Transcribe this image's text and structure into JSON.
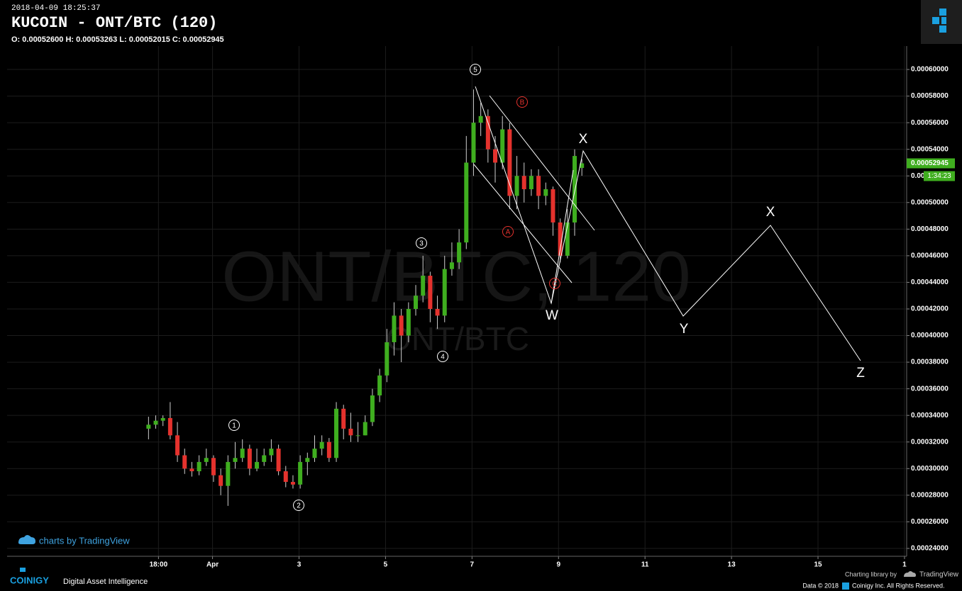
{
  "header": {
    "timestamp": "2018-04-09 18:25:37",
    "title": "KUCOIN - ONT/BTC (120)",
    "ohlc": "O: 0.00052600 H: 0.00053263 L: 0.00052015 C: 0.00052945"
  },
  "chart_data": {
    "type": "candlestick",
    "watermark": "ONT/BTC, 120",
    "watermark_sub": "ONT/BTC",
    "up_color": "#3fae1f",
    "down_color": "#e5322d",
    "x": [
      -1.48,
      -1.313,
      -1.146,
      -0.979,
      -0.812,
      -0.645,
      -0.478,
      -0.311,
      -0.144,
      0.023,
      0.19,
      0.357,
      0.524,
      0.691,
      0.858,
      1.025,
      1.192,
      1.359,
      1.526,
      1.693,
      1.86,
      2.027,
      2.194,
      2.361,
      2.528,
      2.695,
      2.862,
      3.029,
      3.196,
      3.363,
      3.53,
      3.697,
      3.864,
      4.031,
      4.198,
      4.365,
      4.532,
      4.699,
      4.866,
      5.033,
      5.2,
      5.367,
      5.534,
      5.701,
      5.868,
      6.035,
      6.202,
      6.369,
      6.536,
      6.703,
      6.87,
      7.037,
      7.204,
      7.371,
      7.538,
      7.705,
      7.872,
      8.039,
      8.206,
      8.373,
      8.54
    ],
    "open": [
      0.00033,
      0.000333,
      0.000336,
      0.000338,
      0.000325,
      0.00031,
      0.0003,
      0.000298,
      0.000305,
      0.000308,
      0.000295,
      0.000287,
      0.000305,
      0.000308,
      0.000315,
      0.0003,
      0.000305,
      0.00031,
      0.000315,
      0.000298,
      0.00029,
      0.000288,
      0.000305,
      0.000308,
      0.000315,
      0.00032,
      0.000308,
      0.000345,
      0.00033,
      0.000325,
      0.000325,
      0.000335,
      0.000355,
      0.00037,
      0.000395,
      0.000415,
      0.0004,
      0.00042,
      0.00043,
      0.000445,
      0.00042,
      0.000415,
      0.00045,
      0.000455,
      0.00047,
      0.00053,
      0.00056,
      0.000565,
      0.00054,
      0.00053,
      0.000555,
      0.000505,
      0.00052,
      0.00051,
      0.00052,
      0.000505,
      0.00051,
      0.000485,
      0.00046,
      0.000485,
      0.000526
    ],
    "high": [
      0.000339,
      0.00034,
      0.00034,
      0.00035,
      0.000335,
      0.000315,
      0.000305,
      0.00031,
      0.000315,
      0.00031,
      0.0003,
      0.00031,
      0.00032,
      0.000322,
      0.000318,
      0.000315,
      0.000315,
      0.000322,
      0.000318,
      0.000302,
      0.000295,
      0.00031,
      0.000312,
      0.000325,
      0.000325,
      0.000323,
      0.00035,
      0.000348,
      0.000342,
      0.000335,
      0.00034,
      0.00036,
      0.000375,
      0.000405,
      0.000425,
      0.00042,
      0.000425,
      0.000438,
      0.00046,
      0.000448,
      0.00043,
      0.00046,
      0.00047,
      0.00048,
      0.00055,
      0.000585,
      0.000575,
      0.00057,
      0.00055,
      0.000565,
      0.00056,
      0.000535,
      0.00053,
      0.000525,
      0.000525,
      0.000515,
      0.000512,
      0.000488,
      0.000495,
      0.00054,
      0.00053263
    ],
    "low": [
      0.000322,
      0.00033,
      0.000332,
      0.000322,
      0.000305,
      0.000296,
      0.000294,
      0.000295,
      0.000302,
      0.00029,
      0.00028,
      0.000272,
      0.0003,
      0.000305,
      0.000295,
      0.000298,
      0.000302,
      0.000305,
      0.000295,
      0.000286,
      0.000285,
      0.000285,
      0.000295,
      0.000305,
      0.00031,
      0.000305,
      0.000305,
      0.000322,
      0.00032,
      0.00032,
      0.000325,
      0.000332,
      0.00035,
      0.000365,
      0.000385,
      0.00038,
      0.000395,
      0.000415,
      0.000425,
      0.00041,
      0.000405,
      0.00041,
      0.000445,
      0.00045,
      0.000465,
      0.00052,
      0.00055,
      0.00053,
      0.000515,
      0.000525,
      0.000495,
      0.000495,
      0.0005,
      0.000505,
      0.000495,
      0.000498,
      0.000475,
      0.000455,
      0.000458,
      0.000475,
      0.00052015
    ],
    "close": [
      0.000333,
      0.000336,
      0.000338,
      0.000325,
      0.00031,
      0.0003,
      0.000298,
      0.000305,
      0.000308,
      0.000295,
      0.000287,
      0.000305,
      0.000308,
      0.000315,
      0.0003,
      0.000305,
      0.00031,
      0.000315,
      0.000298,
      0.00029,
      0.000288,
      0.000305,
      0.000308,
      0.000315,
      0.00032,
      0.000308,
      0.000345,
      0.00033,
      0.000325,
      0.000325,
      0.000335,
      0.000355,
      0.00037,
      0.000395,
      0.000415,
      0.0004,
      0.00042,
      0.00043,
      0.000445,
      0.00042,
      0.000415,
      0.00045,
      0.000455,
      0.00047,
      0.00053,
      0.00056,
      0.000565,
      0.00054,
      0.00053,
      0.000555,
      0.000505,
      0.00052,
      0.00051,
      0.00052,
      0.000505,
      0.00051,
      0.000485,
      0.00046,
      0.000485,
      0.000535,
      0.00052945
    ],
    "xlim": [
      -4.75,
      16.05
    ],
    "xticks": [
      {
        "value": -1.25,
        "label": "18:00"
      },
      {
        "value": 0,
        "label": "Apr"
      },
      2,
      4,
      6,
      8,
      10,
      12,
      14,
      16
    ],
    "xtick_labels": [
      "18:00",
      "Apr",
      "3",
      "5",
      "7",
      "9",
      "11",
      "13",
      "15",
      "1"
    ],
    "ylim": [
      0.0002341,
      0.0006176
    ],
    "yticks": [
      {
        "value": 0.00024,
        "label": "0.00024000"
      },
      {
        "value": 0.00026,
        "label": "0.00026000"
      },
      {
        "value": 0.00028,
        "label": "0.00028000"
      },
      {
        "value": 0.0003,
        "label": "0.00030000"
      },
      {
        "value": 0.00032,
        "label": "0.00032000"
      },
      {
        "value": 0.00034,
        "label": "0.00034000"
      },
      {
        "value": 0.00036,
        "label": "0.00036000"
      },
      {
        "value": 0.00038,
        "label": "0.00038000"
      },
      {
        "value": 0.0004,
        "label": "0.00040000"
      },
      {
        "value": 0.00042,
        "label": "0.00042000"
      },
      {
        "value": 0.00044,
        "label": "0.00044000"
      },
      {
        "value": 0.00046,
        "label": "0.00046000"
      },
      {
        "value": 0.00048,
        "label": "0.00048000"
      },
      {
        "value": 0.0005,
        "label": "0.00050000"
      },
      {
        "value": 0.00052,
        "label": "0.00052000"
      },
      {
        "value": 0.00054,
        "label": "0.00054000"
      },
      {
        "value": 0.00056,
        "label": "0.00056000"
      },
      {
        "value": 0.00058,
        "label": "0.00058000"
      },
      {
        "value": 0.0006,
        "label": "0.00060000"
      }
    ],
    "grid": true,
    "last_price": {
      "value": 0.00052945,
      "label": "0.00052945"
    },
    "countdown": "1:34:23",
    "annotations": {
      "waves": [
        "1",
        "2",
        "3",
        "4",
        "5"
      ],
      "abc": [
        "A",
        "B",
        "C"
      ],
      "wxyz": [
        "W",
        "X",
        "Y",
        "X",
        "Z"
      ]
    }
  },
  "footer": {
    "tv_badge": "charts by TradingView",
    "brand": "COINIGY",
    "tagline": "Digital Asset Intelligence",
    "charting_by": "Charting library by",
    "tv_name": "TradingView",
    "copyright_a": "Data © 2018",
    "copyright_b": "Coinigy Inc. All Rights Reserved."
  }
}
